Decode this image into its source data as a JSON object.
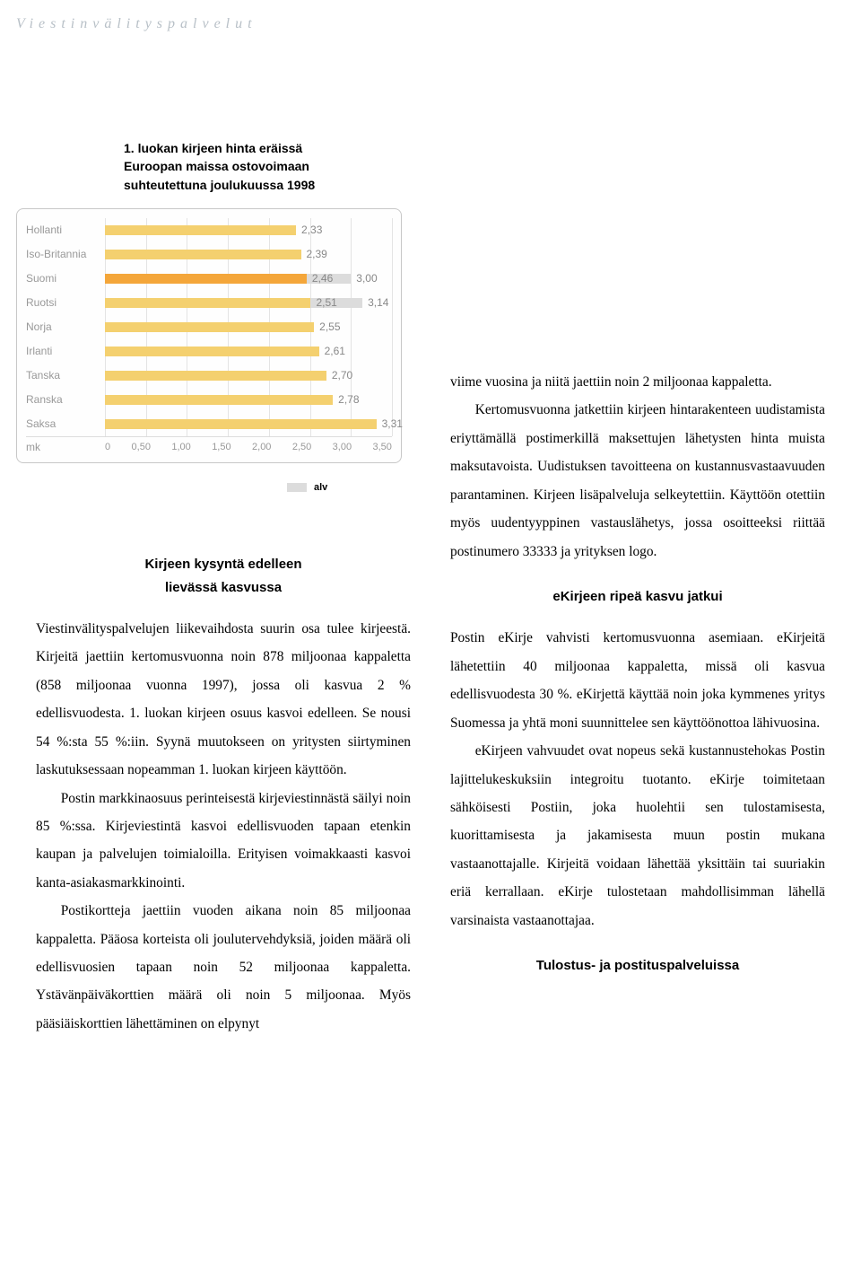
{
  "header": "Viestinvälityspalvelut",
  "chart": {
    "title_line1": "1. luokan kirjeen hinta eräissä",
    "title_line2": "Euroopan maissa ostovoimaan",
    "title_line3": "suhteutettuna joulukuussa 1998",
    "bar_color": "#f4d06f",
    "bar_color_highlight": "#f4a63a",
    "bar_color_alv": "#dcdcdc",
    "background": "#fefefe",
    "border_color": "#c8c8c8",
    "grid_color": "#e4e4e4",
    "label_color": "#999999",
    "value_color": "#888888",
    "xmax": 3.5,
    "ticks": [
      "0",
      "0,50",
      "1,00",
      "1,50",
      "2,00",
      "2,50",
      "3,00",
      "3,50"
    ],
    "axis_label": "mk",
    "rows": [
      {
        "label": "Hollanti",
        "value": 2.33,
        "display": "2,33"
      },
      {
        "label": "Iso-Britannia",
        "value": 2.39,
        "display": "2,39"
      },
      {
        "label": "Suomi",
        "value": 2.46,
        "display": "2,46",
        "highlight": true,
        "alv_value": 3.0,
        "alv_display": "3,00"
      },
      {
        "label": "Ruotsi",
        "value": 2.51,
        "display": "2,51",
        "alv_value": 3.14,
        "alv_display": "3,14"
      },
      {
        "label": "Norja",
        "value": 2.55,
        "display": "2,55"
      },
      {
        "label": "Irlanti",
        "value": 2.61,
        "display": "2,61"
      },
      {
        "label": "Tanska",
        "value": 2.7,
        "display": "2,70"
      },
      {
        "label": "Ranska",
        "value": 2.78,
        "display": "2,78"
      },
      {
        "label": "Saksa",
        "value": 3.31,
        "display": "3,31"
      }
    ],
    "legend": "alv"
  },
  "left_column": {
    "subhead1_l1": "Kirjeen kysyntä edelleen",
    "subhead1_l2": "lievässä kasvussa",
    "p1": "Viestinvälityspalvelujen liikevaihdosta suurin osa tulee kirjeestä. Kirjeitä jaettiin kertomusvuonna noin 878 miljoonaa kappaletta (858 miljoonaa vuonna 1997), jossa oli kasvua 2 % edellisvuodesta. 1. luokan kirjeen osuus kasvoi edelleen. Se nousi 54 %:sta 55 %:iin. Syynä muutokseen on yritysten siirtyminen laskutuksessaan nopeamman 1. luokan kirjeen käyttöön.",
    "p2": "Postin markkinaosuus perinteisestä kirjeviestinnästä säilyi noin 85 %:ssa. Kirjeviestintä kasvoi edellisvuoden tapaan etenkin kaupan ja palvelujen toimialoilla. Erityisen voimakkaasti kasvoi kanta-asiakasmarkkinointi.",
    "p3": "Postikortteja jaettiin vuoden aikana noin 85 miljoonaa kappaletta. Pääosa korteista oli joulutervehdyksiä, joiden määrä oli edellisvuosien tapaan noin 52 miljoonaa kappaletta. Ystävänpäiväkorttien määrä oli noin 5 miljoonaa. Myös pääsiäiskorttien lähettäminen on elpynyt"
  },
  "right_column": {
    "p0": "viime vuosina ja niitä jaettiin noin 2 miljoonaa kappaletta.",
    "p1": "Kertomusvuonna jatkettiin kirjeen hintarakenteen uudistamista eriyttämällä postimerkillä maksettujen lähetysten hinta muista maksutavoista. Uudistuksen tavoitteena on kustannusvastaavuuden parantaminen. Kirjeen lisäpalveluja selkeytettiin. Käyttöön otettiin myös uudentyyppinen vastauslähetys, jossa osoitteeksi riittää postinumero 33333 ja yrityksen logo.",
    "subhead2": "eKirjeen ripeä kasvu jatkui",
    "p2": "Postin eKirje vahvisti kertomusvuonna asemiaan. eKirjeitä lähetettiin 40 miljoonaa kappaletta, missä oli kasvua edellisvuodesta 30 %. eKirjettä käyttää noin joka kymmenes yritys Suomessa ja yhtä moni suunnittelee sen käyttöönottoa lähivuosina.",
    "p3": "eKirjeen vahvuudet ovat nopeus sekä kustannustehokas Postin lajittelukeskuksiin integroitu tuotanto. eKirje toimitetaan sähköisesti Postiin, joka huolehtii sen tulostamisesta, kuorittamisesta ja jakamisesta muun postin mukana vastaanottajalle. Kirjeitä voidaan lähettää yksittäin tai suuriakin eriä kerrallaan. eKirje tulostetaan mahdollisimman lähellä varsinaista vastaanottajaa.",
    "subhead3": "Tulostus- ja postituspalveluissa"
  }
}
